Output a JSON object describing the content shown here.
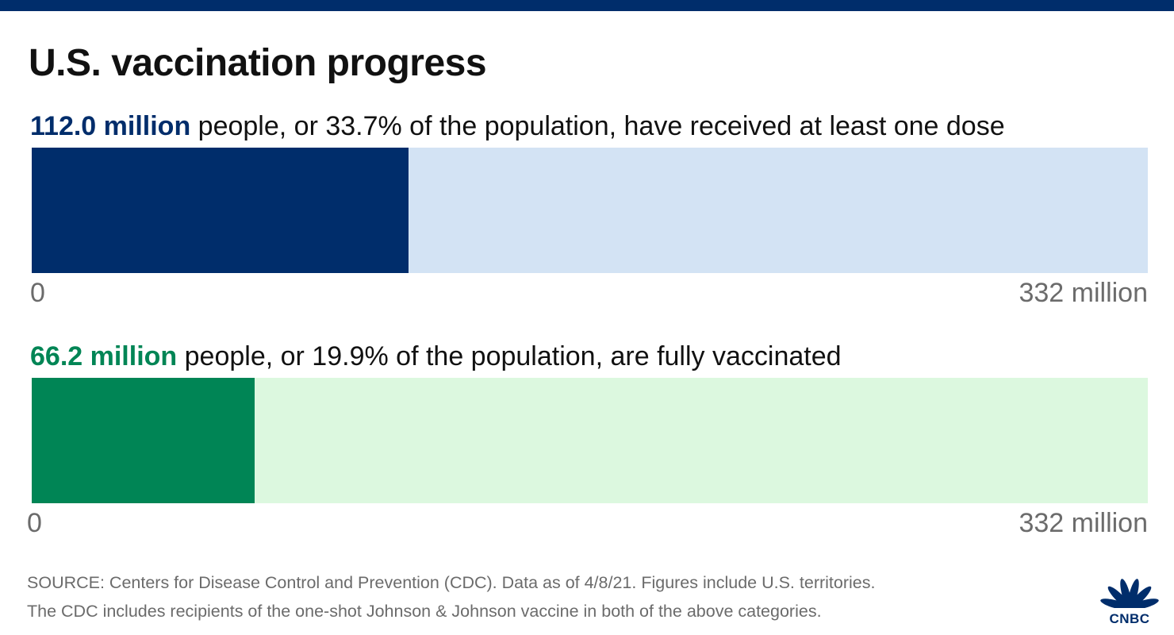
{
  "header": {
    "title": "U.S. vaccination progress"
  },
  "colors": {
    "top_bar": "#002d6b",
    "dose_fill": "#002d6b",
    "dose_track": "#d3e3f4",
    "full_fill": "#008555",
    "full_track": "#dcf8df",
    "brand": "#002d6b"
  },
  "chart_data": [
    {
      "type": "bar",
      "orientation": "horizontal",
      "headline_amount": "112.0 million",
      "headline_rest": " people, or 33.7% of the population, have received at least one dose",
      "value": 112.0,
      "percent": 33.7,
      "xlim": [
        0,
        332
      ],
      "axis_min_label": "0",
      "axis_max_label": "332 million"
    },
    {
      "type": "bar",
      "orientation": "horizontal",
      "headline_amount": "66.2 million",
      "headline_rest": " people, or 19.9% of the population, are fully vaccinated",
      "value": 66.2,
      "percent": 19.9,
      "xlim": [
        0,
        332
      ],
      "axis_min_label": "0",
      "axis_max_label": "332 million"
    }
  ],
  "footer": {
    "source_line1": "SOURCE: Centers for Disease Control and Prevention (CDC). Data as of 4/8/21. Figures include U.S. territories.",
    "source_line2": "The CDC includes recipients of the one-shot Johnson & Johnson vaccine in both of the above categories.",
    "logo_text": "CNBC",
    "logo_icon": "peacock-icon"
  }
}
